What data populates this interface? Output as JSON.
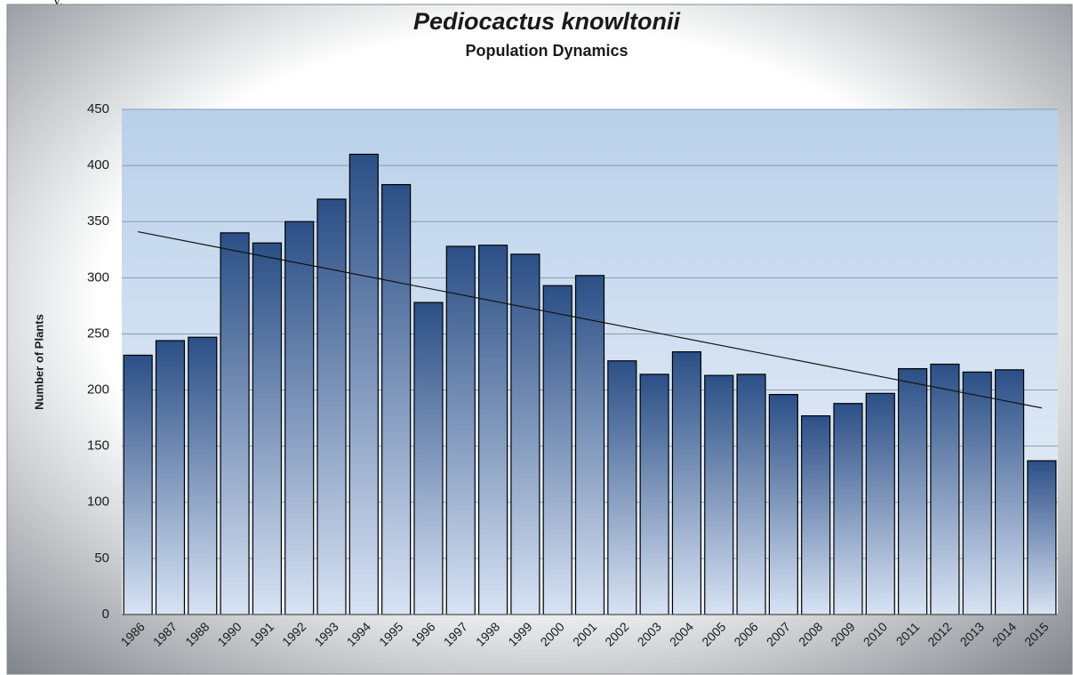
{
  "caption_fragment": "y,",
  "chart_data": {
    "type": "bar",
    "title": "Pediocactus knowltonii",
    "subtitle": "Population Dynamics",
    "y_label": "Number of Plants",
    "categories": [
      "1986",
      "1987",
      "1988",
      "1990",
      "1991",
      "1992",
      "1993",
      "1994",
      "1995",
      "1996",
      "1997",
      "1998",
      "1999",
      "2000",
      "2001",
      "2002",
      "2003",
      "2004",
      "2005",
      "2006",
      "2007",
      "2008",
      "2009",
      "2010",
      "2011",
      "2012",
      "2013",
      "2014",
      "2015"
    ],
    "values": [
      231,
      244,
      247,
      340,
      331,
      350,
      370,
      410,
      383,
      278,
      328,
      329,
      321,
      293,
      302,
      226,
      214,
      234,
      213,
      214,
      196,
      177,
      188,
      197,
      219,
      223,
      216,
      218,
      137
    ],
    "color": "#2b4f86",
    "trendline": {
      "start": 341,
      "end": 184
    },
    "ylim": [
      0,
      450
    ],
    "yticks": [
      0,
      50,
      100,
      150,
      200,
      250,
      300,
      350,
      400,
      450
    ],
    "grid": true
  }
}
